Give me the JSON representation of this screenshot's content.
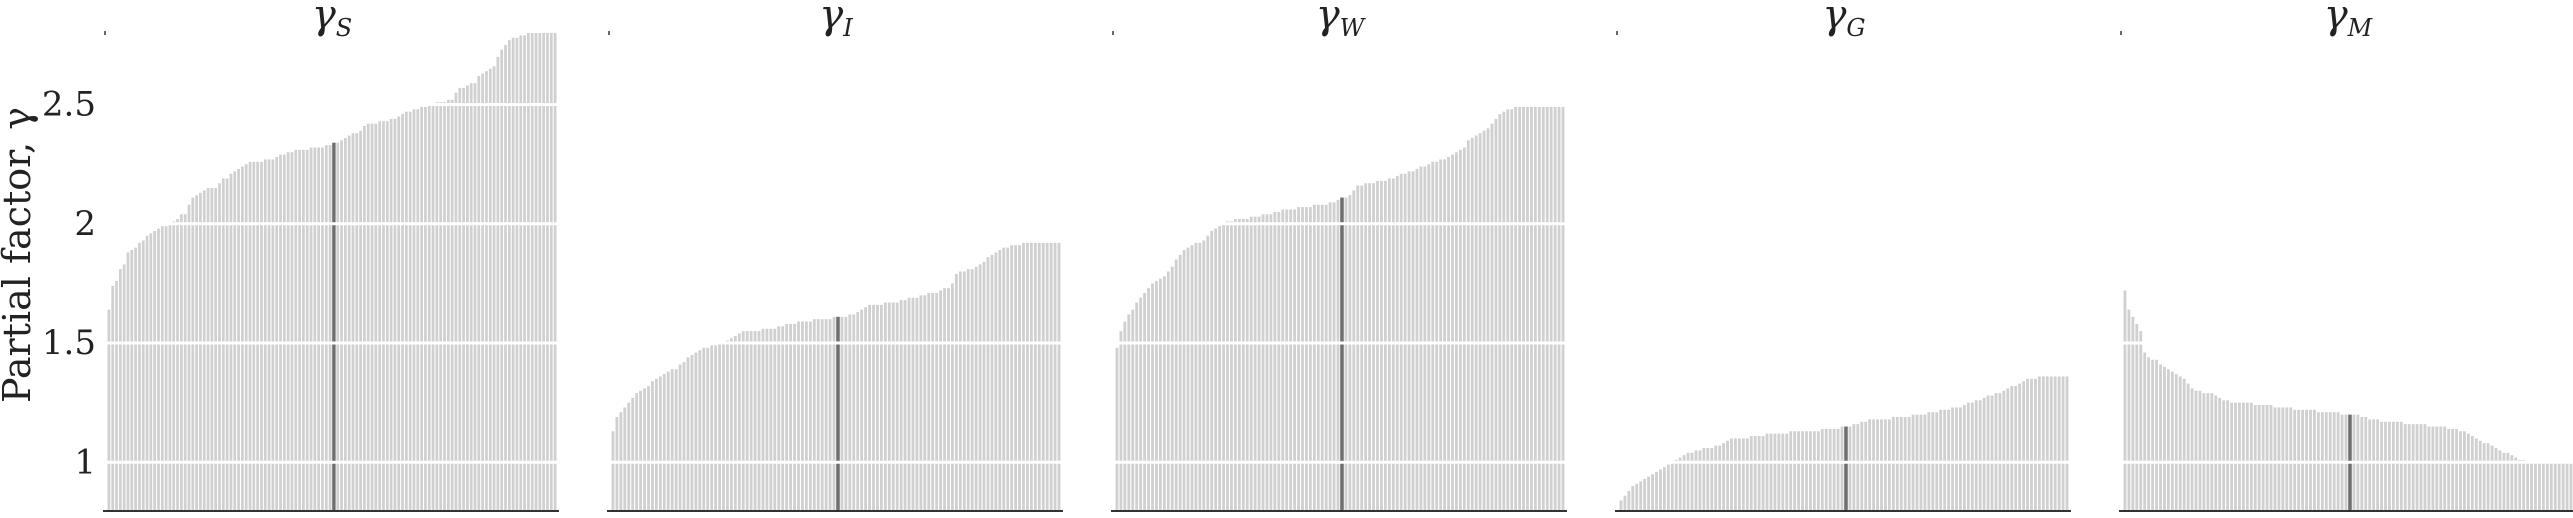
{
  "chart_data": {
    "type": "bar",
    "ylabel": "Partial factor, γ",
    "ylim": [
      0.8,
      2.8
    ],
    "yticks": [
      1,
      1.5,
      2,
      2.5
    ],
    "ytick_labels": [
      "1",
      "1.5",
      "2",
      "2.5"
    ],
    "grid": "horizontal",
    "colors": {
      "bar": "#d0d0d0",
      "median_bar": "#6f6f6f",
      "grid": "#ffffff",
      "axis": "#333333"
    },
    "panels": [
      {
        "title_base": "γ",
        "title_sub": "S",
        "median": 2.32,
        "values": [
          1.64,
          1.74,
          1.76,
          1.81,
          1.83,
          1.88,
          1.89,
          1.9,
          1.92,
          1.93,
          1.95,
          1.96,
          1.97,
          1.98,
          1.99,
          1.99,
          2.0,
          2.01,
          2.02,
          2.04,
          2.04,
          2.08,
          2.11,
          2.12,
          2.13,
          2.14,
          2.15,
          2.15,
          2.15,
          2.17,
          2.19,
          2.19,
          2.21,
          2.22,
          2.23,
          2.24,
          2.25,
          2.26,
          2.26,
          2.26,
          2.26,
          2.27,
          2.27,
          2.27,
          2.28,
          2.29,
          2.29,
          2.3,
          2.3,
          2.31,
          2.31,
          2.31,
          2.31,
          2.32,
          2.32,
          2.32,
          2.32,
          2.33,
          2.33,
          2.34,
          2.34,
          2.35,
          2.36,
          2.37,
          2.38,
          2.38,
          2.39,
          2.41,
          2.42,
          2.42,
          2.42,
          2.43,
          2.43,
          2.43,
          2.44,
          2.44,
          2.45,
          2.46,
          2.47,
          2.47,
          2.48,
          2.48,
          2.49,
          2.49,
          2.5,
          2.5,
          2.51,
          2.51,
          2.51,
          2.52,
          2.52,
          2.55,
          2.57,
          2.57,
          2.58,
          2.59,
          2.59,
          2.62,
          2.63,
          2.64,
          2.65,
          2.66,
          2.7,
          2.73,
          2.75,
          2.77,
          2.78,
          2.78,
          2.79,
          2.79,
          2.8,
          2.8,
          2.8,
          2.8,
          2.8,
          2.8,
          2.8,
          2.8
        ]
      },
      {
        "title_base": "γ",
        "title_sub": "I",
        "median": 1.6,
        "values": [
          1.13,
          1.19,
          1.21,
          1.23,
          1.25,
          1.27,
          1.29,
          1.3,
          1.31,
          1.32,
          1.34,
          1.35,
          1.36,
          1.37,
          1.38,
          1.39,
          1.39,
          1.41,
          1.42,
          1.44,
          1.45,
          1.46,
          1.47,
          1.48,
          1.48,
          1.49,
          1.49,
          1.5,
          1.5,
          1.51,
          1.52,
          1.53,
          1.54,
          1.55,
          1.55,
          1.55,
          1.55,
          1.55,
          1.56,
          1.56,
          1.56,
          1.56,
          1.57,
          1.57,
          1.58,
          1.58,
          1.58,
          1.59,
          1.59,
          1.59,
          1.59,
          1.6,
          1.6,
          1.6,
          1.6,
          1.6,
          1.61,
          1.61,
          1.61,
          1.61,
          1.62,
          1.62,
          1.63,
          1.64,
          1.65,
          1.66,
          1.66,
          1.66,
          1.66,
          1.67,
          1.67,
          1.67,
          1.67,
          1.68,
          1.68,
          1.69,
          1.69,
          1.69,
          1.7,
          1.7,
          1.71,
          1.71,
          1.71,
          1.72,
          1.73,
          1.73,
          1.75,
          1.79,
          1.8,
          1.8,
          1.81,
          1.81,
          1.82,
          1.83,
          1.84,
          1.86,
          1.87,
          1.88,
          1.89,
          1.9,
          1.9,
          1.91,
          1.91,
          1.91,
          1.92,
          1.92,
          1.92,
          1.92,
          1.92,
          1.92,
          1.92,
          1.92,
          1.92,
          1.92
        ]
      },
      {
        "title_base": "γ",
        "title_sub": "W",
        "median": 2.07,
        "values": [
          1.48,
          1.55,
          1.59,
          1.62,
          1.64,
          1.67,
          1.69,
          1.71,
          1.73,
          1.75,
          1.76,
          1.77,
          1.78,
          1.8,
          1.82,
          1.85,
          1.87,
          1.89,
          1.9,
          1.91,
          1.92,
          1.92,
          1.93,
          1.95,
          1.97,
          1.98,
          1.99,
          2.0,
          2.01,
          2.01,
          2.02,
          2.02,
          2.02,
          2.02,
          2.03,
          2.03,
          2.03,
          2.04,
          2.04,
          2.04,
          2.05,
          2.05,
          2.06,
          2.06,
          2.06,
          2.06,
          2.07,
          2.07,
          2.07,
          2.07,
          2.08,
          2.08,
          2.08,
          2.08,
          2.09,
          2.09,
          2.1,
          2.11,
          2.11,
          2.12,
          2.14,
          2.16,
          2.16,
          2.17,
          2.17,
          2.17,
          2.18,
          2.18,
          2.18,
          2.19,
          2.19,
          2.2,
          2.21,
          2.21,
          2.22,
          2.22,
          2.23,
          2.24,
          2.24,
          2.25,
          2.26,
          2.26,
          2.27,
          2.27,
          2.28,
          2.29,
          2.3,
          2.31,
          2.32,
          2.35,
          2.36,
          2.37,
          2.38,
          2.39,
          2.4,
          2.42,
          2.44,
          2.46,
          2.47,
          2.48,
          2.48,
          2.49,
          2.49,
          2.49,
          2.49,
          2.49,
          2.49,
          2.49,
          2.49,
          2.49,
          2.49,
          2.49,
          2.49,
          2.49
        ]
      },
      {
        "title_base": "γ",
        "title_sub": "G",
        "median": 1.13,
        "values": [
          0.84,
          0.86,
          0.88,
          0.9,
          0.91,
          0.92,
          0.93,
          0.94,
          0.95,
          0.96,
          0.97,
          0.98,
          0.99,
          1.0,
          1.01,
          1.02,
          1.03,
          1.04,
          1.04,
          1.05,
          1.05,
          1.06,
          1.06,
          1.06,
          1.07,
          1.07,
          1.08,
          1.09,
          1.1,
          1.1,
          1.1,
          1.1,
          1.1,
          1.11,
          1.11,
          1.11,
          1.11,
          1.12,
          1.12,
          1.12,
          1.12,
          1.12,
          1.12,
          1.13,
          1.13,
          1.13,
          1.13,
          1.13,
          1.13,
          1.13,
          1.13,
          1.14,
          1.14,
          1.14,
          1.14,
          1.14,
          1.15,
          1.15,
          1.15,
          1.16,
          1.16,
          1.17,
          1.17,
          1.18,
          1.18,
          1.18,
          1.18,
          1.18,
          1.18,
          1.19,
          1.19,
          1.19,
          1.19,
          1.19,
          1.2,
          1.2,
          1.2,
          1.2,
          1.21,
          1.21,
          1.21,
          1.22,
          1.22,
          1.22,
          1.23,
          1.23,
          1.23,
          1.24,
          1.25,
          1.25,
          1.26,
          1.26,
          1.27,
          1.28,
          1.28,
          1.29,
          1.29,
          1.3,
          1.31,
          1.32,
          1.32,
          1.33,
          1.34,
          1.35,
          1.35,
          1.35,
          1.36,
          1.36,
          1.36,
          1.36,
          1.36,
          1.36,
          1.36,
          1.36
        ]
      },
      {
        "title_base": "γ",
        "title_sub": "M",
        "median": 1.21,
        "values": [
          1.72,
          1.64,
          1.61,
          1.58,
          1.55,
          1.46,
          1.44,
          1.43,
          1.43,
          1.41,
          1.4,
          1.39,
          1.38,
          1.37,
          1.36,
          1.35,
          1.33,
          1.31,
          1.3,
          1.3,
          1.29,
          1.29,
          1.29,
          1.28,
          1.27,
          1.26,
          1.26,
          1.25,
          1.25,
          1.25,
          1.25,
          1.25,
          1.25,
          1.24,
          1.24,
          1.24,
          1.24,
          1.24,
          1.23,
          1.23,
          1.23,
          1.23,
          1.23,
          1.22,
          1.22,
          1.22,
          1.22,
          1.22,
          1.22,
          1.21,
          1.21,
          1.21,
          1.21,
          1.21,
          1.21,
          1.2,
          1.2,
          1.2,
          1.2,
          1.2,
          1.19,
          1.19,
          1.18,
          1.18,
          1.18,
          1.17,
          1.17,
          1.17,
          1.17,
          1.17,
          1.17,
          1.16,
          1.16,
          1.16,
          1.16,
          1.16,
          1.16,
          1.15,
          1.15,
          1.15,
          1.15,
          1.15,
          1.14,
          1.14,
          1.14,
          1.13,
          1.13,
          1.12,
          1.11,
          1.1,
          1.09,
          1.08,
          1.08,
          1.07,
          1.06,
          1.05,
          1.04,
          1.04,
          1.03,
          1.02,
          1.01,
          1.01,
          1.0,
          1.0,
          1.0,
          1.0,
          1.0,
          1.0,
          1.0,
          1.0,
          1.0,
          1.0,
          1.0,
          1.0
        ]
      }
    ]
  }
}
